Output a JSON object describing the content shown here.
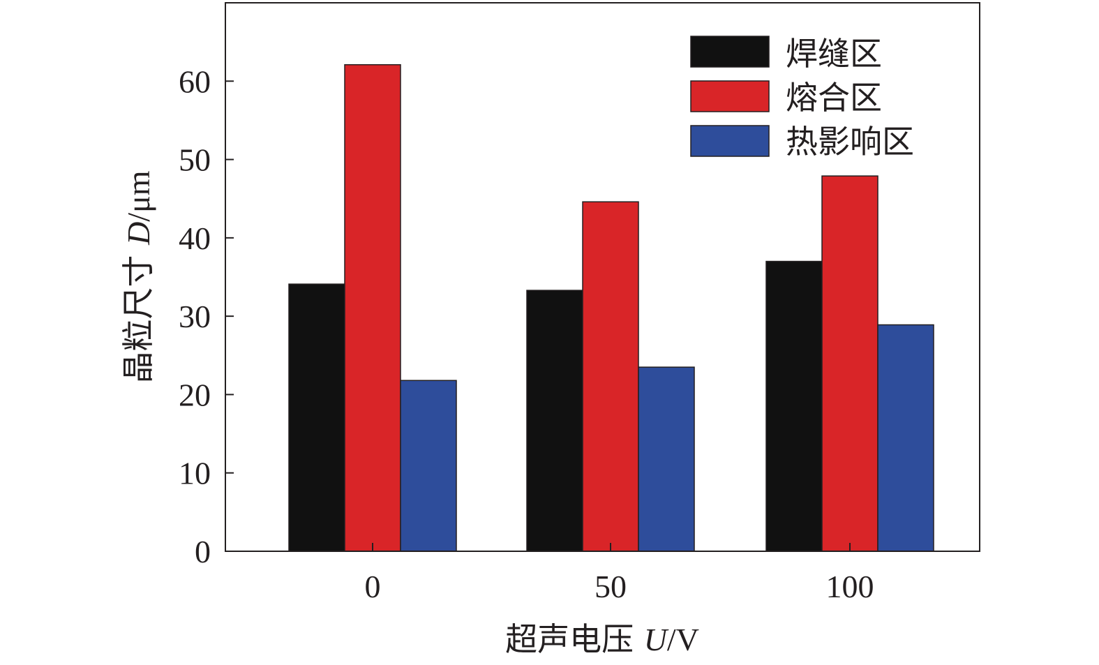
{
  "chart_data": {
    "type": "bar",
    "categories": [
      "0",
      "50",
      "100"
    ],
    "series": [
      {
        "name": "焊缝区",
        "values": [
          34.1,
          33.3,
          37.0
        ],
        "color": "#111111"
      },
      {
        "name": "熔合区",
        "values": [
          62.1,
          44.6,
          47.9
        ],
        "color": "#d92528"
      },
      {
        "name": "热影响区",
        "values": [
          21.8,
          23.5,
          28.9
        ],
        "color": "#2e4d9b"
      }
    ],
    "xlabel_main": "超声电压 ",
    "xlabel_var": "U",
    "xlabel_unit": "/V",
    "ylabel_main": "晶粒尺寸 ",
    "ylabel_var": "D",
    "ylabel_unit": "/μm",
    "ylim": [
      0,
      70
    ],
    "yticks": [
      "0",
      "10",
      "20",
      "30",
      "40",
      "50",
      "60"
    ],
    "legend_position": "top-right",
    "grid": false
  }
}
